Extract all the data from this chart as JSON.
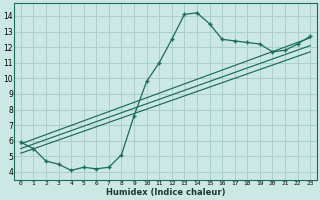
{
  "xlabel": "Humidex (Indice chaleur)",
  "background_color": "#cce8e5",
  "grid_color": "#aacfcc",
  "line_color": "#1a6b5a",
  "xlim": [
    -0.5,
    23.5
  ],
  "ylim": [
    3.5,
    14.8
  ],
  "yticks": [
    4,
    5,
    6,
    7,
    8,
    9,
    10,
    11,
    12,
    13,
    14
  ],
  "xticks": [
    0,
    1,
    2,
    3,
    4,
    5,
    6,
    7,
    8,
    9,
    10,
    11,
    12,
    13,
    14,
    15,
    16,
    17,
    18,
    19,
    20,
    21,
    22,
    23
  ],
  "curve_x": [
    0,
    1,
    2,
    3,
    4,
    5,
    6,
    7,
    8,
    9,
    10,
    11,
    12,
    13,
    14,
    15,
    16,
    17,
    18,
    19,
    20,
    21,
    22,
    23
  ],
  "curve_y": [
    5.9,
    5.5,
    4.7,
    4.5,
    4.1,
    4.3,
    4.2,
    4.3,
    5.1,
    7.6,
    9.8,
    11.0,
    12.5,
    14.1,
    14.2,
    13.5,
    12.5,
    12.4,
    12.3,
    12.2,
    11.7,
    11.8,
    12.2,
    12.7
  ],
  "line1_x": [
    0,
    23
  ],
  "line1_y": [
    5.8,
    12.6
  ],
  "line2_x": [
    0,
    23
  ],
  "line2_y": [
    5.5,
    12.1
  ],
  "line3_x": [
    0,
    23
  ],
  "line3_y": [
    5.2,
    11.7
  ]
}
